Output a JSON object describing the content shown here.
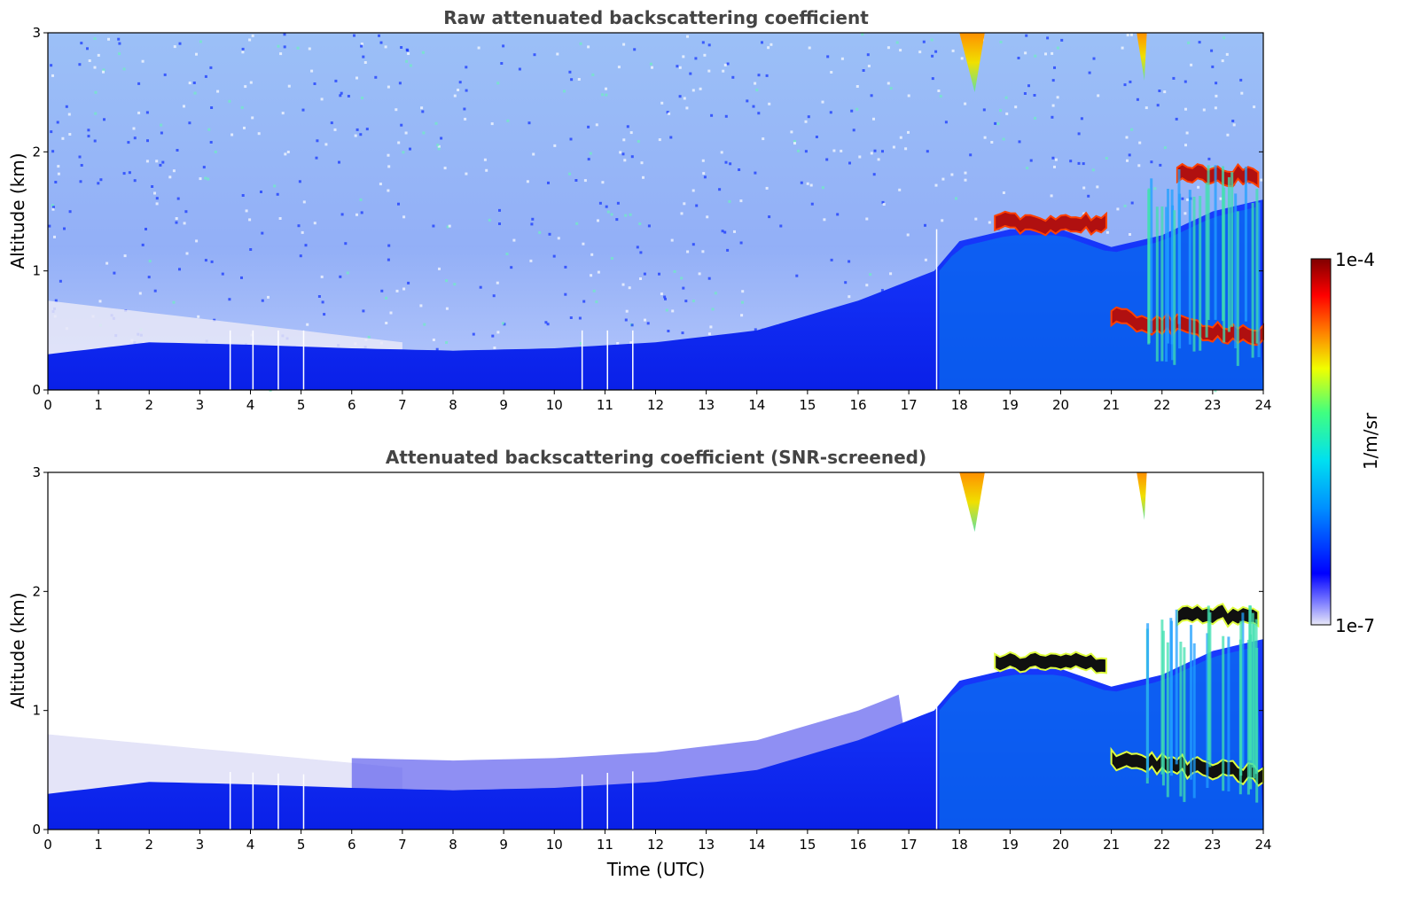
{
  "chart_data": [
    {
      "type": "heatmap",
      "title": "Raw attenuated backscattering coefficient",
      "xlabel": "",
      "ylabel": "Altitude (km)",
      "xlim": [
        0,
        24
      ],
      "ylim": [
        0,
        3
      ],
      "x_ticks": [
        "0",
        "1",
        "2",
        "3",
        "4",
        "5",
        "6",
        "7",
        "8",
        "9",
        "10",
        "11",
        "12",
        "13",
        "14",
        "15",
        "16",
        "17",
        "18",
        "19",
        "20",
        "21",
        "22",
        "23",
        "24"
      ],
      "y_ticks": [
        "0",
        "1",
        "2",
        "3"
      ],
      "data_gaps_hours": [
        3.6,
        4.05,
        4.55,
        5.05,
        10.55,
        11.05,
        11.55,
        17.55
      ],
      "boundary_layer_top_km": {
        "x": [
          0,
          2,
          4,
          6,
          8,
          10,
          12,
          14,
          16,
          17.5,
          18,
          19,
          20,
          21,
          22,
          23,
          24
        ],
        "y": [
          0.3,
          0.4,
          0.38,
          0.35,
          0.33,
          0.35,
          0.4,
          0.5,
          0.75,
          1.0,
          1.25,
          1.35,
          1.35,
          1.2,
          1.3,
          1.5,
          1.6
        ]
      },
      "cloud_layers_km": [
        {
          "x_start": 18.7,
          "x_end": 20.9,
          "altitude": 1.4
        },
        {
          "x_start": 21.0,
          "x_end": 24.0,
          "altitude": 0.6
        },
        {
          "x_start": 22.3,
          "x_end": 23.9,
          "altitude": 1.8
        }
      ],
      "high_signal_plumes": [
        {
          "x_start": 18.0,
          "x_end": 18.5,
          "alt_from": 2.5,
          "alt_to": 3.0
        },
        {
          "x_start": 21.5,
          "x_end": 21.7,
          "alt_from": 2.6,
          "alt_to": 3.0
        }
      ]
    },
    {
      "type": "heatmap",
      "title": "Attenuated backscattering coefficient (SNR-screened)",
      "xlabel": "Time (UTC)",
      "ylabel": "Altitude (km)",
      "xlim": [
        0,
        24
      ],
      "ylim": [
        0,
        3
      ],
      "x_ticks": [
        "0",
        "1",
        "2",
        "3",
        "4",
        "5",
        "6",
        "7",
        "8",
        "9",
        "10",
        "11",
        "12",
        "13",
        "14",
        "15",
        "16",
        "17",
        "18",
        "19",
        "20",
        "21",
        "22",
        "23",
        "24"
      ],
      "y_ticks": [
        "0",
        "1",
        "2",
        "3"
      ],
      "data_gaps_hours": [
        3.6,
        4.05,
        4.55,
        5.05,
        10.55,
        11.05,
        11.55,
        17.55
      ],
      "boundary_layer_top_km": {
        "x": [
          0,
          2,
          4,
          6,
          8,
          10,
          12,
          14,
          16,
          17.5,
          18,
          19,
          20,
          21,
          22,
          23,
          24
        ],
        "y": [
          0.3,
          0.4,
          0.38,
          0.35,
          0.33,
          0.35,
          0.4,
          0.5,
          0.75,
          1.0,
          1.25,
          1.35,
          1.35,
          1.2,
          1.3,
          1.5,
          1.6
        ]
      },
      "cloud_layers_km": [
        {
          "x_start": 18.7,
          "x_end": 20.9,
          "altitude": 1.4
        },
        {
          "x_start": 21.0,
          "x_end": 24.0,
          "altitude": 0.6
        },
        {
          "x_start": 22.3,
          "x_end": 23.9,
          "altitude": 1.8
        }
      ],
      "high_signal_plumes": [
        {
          "x_start": 18.0,
          "x_end": 18.5,
          "alt_from": 2.5,
          "alt_to": 3.0
        },
        {
          "x_start": 21.5,
          "x_end": 21.7,
          "alt_from": 2.6,
          "alt_to": 3.0
        }
      ]
    }
  ],
  "colorbar": {
    "label": "1/m/sr",
    "min_label": "1e-7",
    "max_label": "1e-4",
    "scale": "log",
    "colormap": [
      "#e8e8f8",
      "#0000ff",
      "#0090ff",
      "#00e0f0",
      "#40ff80",
      "#f0ff00",
      "#ff8000",
      "#ff0000",
      "#800000"
    ]
  }
}
